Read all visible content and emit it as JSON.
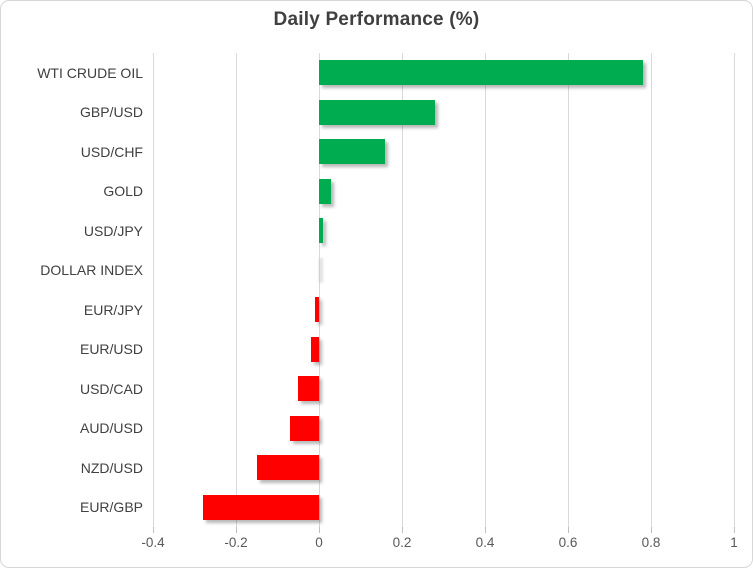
{
  "chart_data": {
    "type": "bar",
    "orientation": "horizontal",
    "title": "Daily Performance (%)",
    "categories": [
      "WTI CRUDE OIL",
      "GBP/USD",
      "USD/CHF",
      "GOLD",
      "USD/JPY",
      "DOLLAR INDEX",
      "EUR/JPY",
      "EUR/USD",
      "USD/CAD",
      "AUD/USD",
      "NZD/USD",
      "EUR/GBP"
    ],
    "values": [
      0.78,
      0.28,
      0.16,
      0.03,
      0.01,
      0.0,
      -0.01,
      -0.02,
      -0.05,
      -0.07,
      -0.15,
      -0.28
    ],
    "xlabel": "",
    "ylabel": "",
    "xlim": [
      -0.4,
      1.0
    ],
    "x_ticks": [
      -0.4,
      -0.2,
      0,
      0.2,
      0.4,
      0.6,
      0.8,
      1
    ],
    "x_tick_labels": [
      "-0.4",
      "-0.2",
      "0",
      "0.2",
      "0.4",
      "0.6",
      "0.8",
      "1"
    ],
    "grid": "vertical-on",
    "legend": "none",
    "colors": {
      "positive_bar": "#00AC50",
      "negative_bar": "#FF0000",
      "zero_bar_shadow": "#BFBFBF",
      "gridline": "#D9D9D9",
      "title_text": "#404040",
      "category_text": "#404040",
      "tick_text": "#595959",
      "chart_border": "#D7D7D7",
      "background": "#FFFFFF"
    }
  }
}
